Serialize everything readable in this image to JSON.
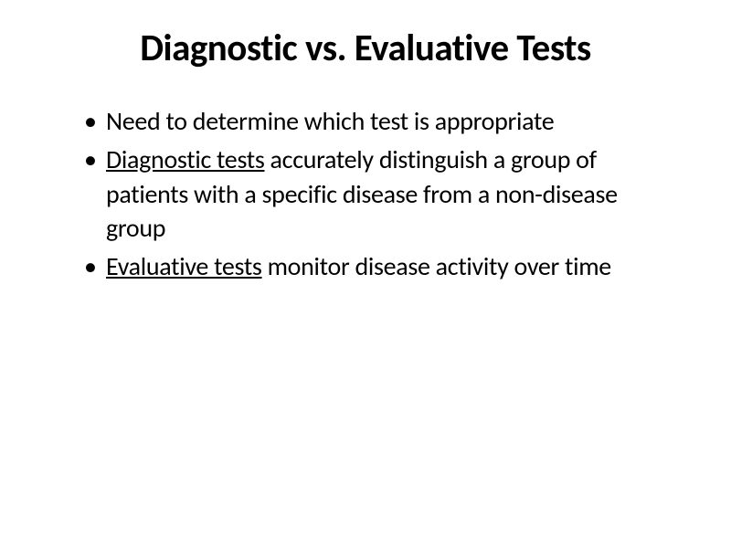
{
  "slide": {
    "title": "Diagnostic vs. Evaluative Tests",
    "bullets": [
      {
        "prefix_underlined": "",
        "prefix_plain": "",
        "main": "Need to determine which test is appropriate"
      },
      {
        "prefix_underlined": "Diagnostic tests",
        "prefix_plain": " accurately distinguish a group of patients with a specific disease from a non-disease group",
        "main": ""
      },
      {
        "prefix_underlined": "Evaluative tests",
        "prefix_plain": " monitor disease activity over time",
        "main": ""
      }
    ]
  },
  "style": {
    "background_color": "#ffffff",
    "text_color": "#000000",
    "title_fontsize": 41,
    "title_weight": 700,
    "body_fontsize": 28,
    "font_family": "Calibri, Segoe UI, Arial, sans-serif"
  }
}
